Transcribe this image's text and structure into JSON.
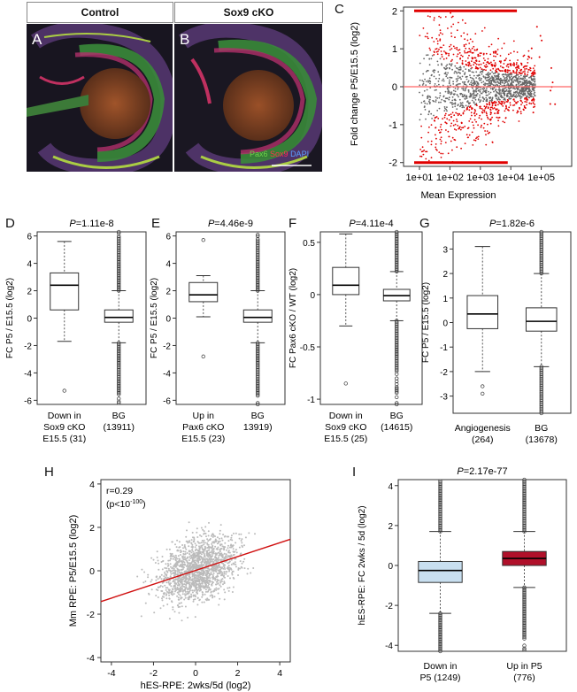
{
  "panels": {
    "A": {
      "letter": "A",
      "header": "Control"
    },
    "B": {
      "letter": "B",
      "header": "Sox9 cKO",
      "legend_pax6": "Pax6",
      "legend_sox9": "Sox9",
      "legend_dapi": "DAPI"
    },
    "C": {
      "letter": "C"
    },
    "D": {
      "letter": "D",
      "pvalue": "=1.11e-8"
    },
    "E": {
      "letter": "E",
      "pvalue": "=4.46e-9"
    },
    "F": {
      "letter": "F",
      "pvalue": "=4.11e-4"
    },
    "G": {
      "letter": "G",
      "pvalue": "=1.82e-6"
    },
    "H": {
      "letter": "H"
    },
    "I": {
      "letter": "I",
      "pvalue": "=2.17e-77"
    }
  },
  "colors": {
    "red": "#e00000",
    "grey": "#666666",
    "scatter_grey": "#bbbbbb",
    "box_blue": "#c8dff0",
    "box_red": "#b0102a"
  },
  "chart_data": [
    {
      "id": "C",
      "type": "scatter",
      "xlabel": "Mean Expression",
      "ylabel": "Fold change P5/E15.5 (log2)",
      "x_ticks": [
        "1e+01",
        "1e+02",
        "1e+03",
        "1e+04",
        "1e+05"
      ],
      "y_ticks": [
        "-2",
        "-1",
        "0",
        "1",
        "2"
      ],
      "x_scale": "log",
      "xlim": [
        3,
        1000000
      ],
      "ylim": [
        -2.1,
        2.1
      ],
      "reference_line_y": 0
    },
    {
      "id": "D",
      "type": "box",
      "ylabel": "FC  P5 / E15.5 (log2)",
      "ylim": [
        -6.3,
        6.3
      ],
      "y_ticks": [
        "-6",
        "-4",
        "-2",
        "0",
        "2",
        "4",
        "6"
      ],
      "groups": [
        {
          "label": [
            "Down in",
            "Sox9 cKO",
            "E15.5 (31)"
          ],
          "min": -1.7,
          "q1": 0.6,
          "median": 2.4,
          "q3": 3.3,
          "max": 5.6,
          "outliers": [
            -5.3
          ]
        },
        {
          "label": [
            "BG",
            "(13911)"
          ],
          "min": -1.8,
          "q1": -0.3,
          "median": 0.05,
          "q3": 0.6,
          "max": 2.0,
          "outliers_dense": true
        }
      ]
    },
    {
      "id": "E",
      "type": "box",
      "ylabel": "FC P5 / E15.5 (log2)",
      "ylim": [
        -6.3,
        6.3
      ],
      "y_ticks": [
        "-6",
        "-4",
        "-2",
        "0",
        "2",
        "4",
        "6"
      ],
      "groups": [
        {
          "label": [
            "Up in",
            "Pax6 cKO",
            "E15.5 (23)"
          ],
          "min": 0.1,
          "q1": 1.2,
          "median": 1.7,
          "q3": 2.6,
          "max": 3.1,
          "outliers": [
            5.7,
            -2.8
          ]
        },
        {
          "label": [
            "BG",
            "13919)"
          ],
          "min": -1.8,
          "q1": -0.3,
          "median": 0.05,
          "q3": 0.6,
          "max": 2.0,
          "outliers_dense": true
        }
      ]
    },
    {
      "id": "F",
      "type": "box",
      "ylabel": "FC Pax6 cKO / WT (log2)",
      "ylim": [
        -1.05,
        0.6
      ],
      "y_ticks": [
        "-1",
        "-0.5",
        "0",
        "0.5"
      ],
      "groups": [
        {
          "label": [
            "Down in",
            "Sox9 cKO",
            "E15.5 (25)"
          ],
          "min": -0.3,
          "q1": 0.0,
          "median": 0.09,
          "q3": 0.26,
          "max": 0.58,
          "outliers": [
            -0.85
          ]
        },
        {
          "label": [
            "BG",
            "(14615)"
          ],
          "min": -0.25,
          "q1": -0.06,
          "median": -0.01,
          "q3": 0.05,
          "max": 0.22,
          "outliers_dense": true
        }
      ]
    },
    {
      "id": "G",
      "type": "box",
      "ylabel": "FC P5 / E15.5 (log2)",
      "ylim": [
        -3.7,
        3.7
      ],
      "y_ticks": [
        "-3",
        "-2",
        "-1",
        "0",
        "1",
        "2",
        "3"
      ],
      "groups": [
        {
          "label": [
            "Angiogenesis",
            "(264)"
          ],
          "min": -2.0,
          "q1": -0.25,
          "median": 0.35,
          "q3": 1.1,
          "max": 3.1,
          "outliers": [
            -2.6,
            -2.9
          ]
        },
        {
          "label": [
            "BG",
            "(13678)"
          ],
          "min": -1.8,
          "q1": -0.35,
          "median": 0.05,
          "q3": 0.6,
          "max": 2.0,
          "outliers_dense": true
        }
      ]
    },
    {
      "id": "H",
      "type": "scatter",
      "xlabel": "hES-RPE: 2wks/5d (log2)",
      "ylabel": "Mm RPE: P5/E15.5 (log2)",
      "annotation_r": "r=0.29",
      "annotation_p": "(p<10",
      "annotation_p_exp": "-100",
      "x_ticks": [
        "-4",
        "-2",
        "0",
        "2",
        "4"
      ],
      "y_ticks": [
        "-4",
        "-2",
        "0",
        "2",
        "4"
      ],
      "xlim": [
        -4.5,
        4.5
      ],
      "ylim": [
        -4.2,
        4.2
      ],
      "fit_line": {
        "x": [
          -4.5,
          4.5
        ],
        "y": [
          -1.42,
          1.45
        ]
      }
    },
    {
      "id": "I",
      "type": "box",
      "ylabel": "hES-RPE: FC 2wks / 5d (log2)",
      "ylim": [
        -4.3,
        4.3
      ],
      "y_ticks": [
        "-4",
        "-2",
        "0",
        "2",
        "4"
      ],
      "groups": [
        {
          "label": [
            "Down in",
            "P5 (1249)"
          ],
          "min": -2.4,
          "q1": -0.85,
          "median": -0.25,
          "q3": 0.2,
          "max": 1.7,
          "fill": "#c8dff0",
          "outliers_dense": true
        },
        {
          "label": [
            "Up in P5",
            "(776)"
          ],
          "min": -1.1,
          "q1": 0.0,
          "median": 0.35,
          "q3": 0.7,
          "max": 1.7,
          "fill": "#b0102a",
          "outliers_dense": true
        }
      ]
    }
  ]
}
